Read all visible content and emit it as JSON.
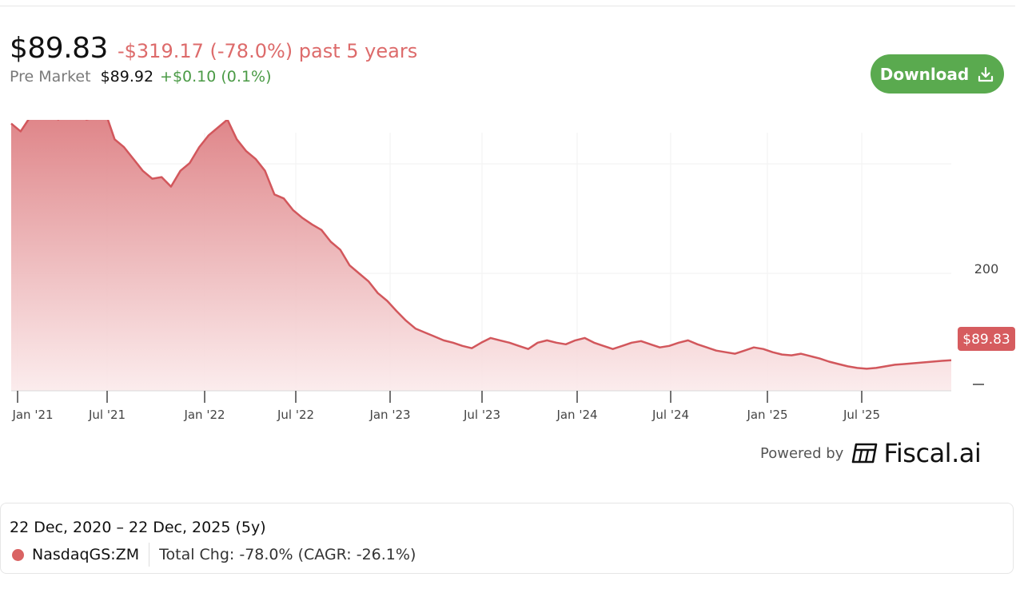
{
  "header": {
    "price": "$89.83",
    "change": "-$319.17 (-78.0%) past 5 years",
    "premarket_label": "Pre Market",
    "premarket_price": "$89.92",
    "premarket_change": "+$0.10 (0.1%)"
  },
  "toolbar": {
    "download_label": "Download"
  },
  "powered_by": {
    "label": "Powered by",
    "brand": "Fiscal.ai"
  },
  "info": {
    "range": "22 Dec, 2020 – 22 Dec, 2025 (5y)",
    "ticker": "NasdaqGS:ZM",
    "total_change": "Total Chg: -78.0% (CAGR: -26.1%)"
  },
  "colors": {
    "line": "#d2575c",
    "area_top": "#dc7a7e",
    "area_bottom": "#fbeaeb",
    "change_negative": "#dd6b6b",
    "change_positive": "#4a9a45",
    "download_button": "#5aaa4f",
    "price_tag": "#d65c5f"
  },
  "chart_data": {
    "type": "area",
    "x_labels": [
      "Jan '21",
      "Jul '21",
      "Jan '22",
      "Jul '22",
      "Jan '23",
      "Jul '23",
      "Jan '24",
      "Jul '24",
      "Jan '25",
      "Jul '25"
    ],
    "y_tick_labels": [
      "200"
    ],
    "last_price_label": "$89.83",
    "y_range": [
      51,
      415
    ],
    "grid": true,
    "series": [
      {
        "values": [
          [
            0.0,
            390
          ],
          [
            0.01,
            380
          ],
          [
            0.02,
            398
          ],
          [
            0.03,
            402
          ],
          [
            0.04,
            407
          ],
          [
            0.05,
            395
          ],
          [
            0.06,
            412
          ],
          [
            0.07,
            408
          ],
          [
            0.08,
            395
          ],
          [
            0.09,
            398
          ],
          [
            0.1,
            405
          ],
          [
            0.11,
            370
          ],
          [
            0.12,
            360
          ],
          [
            0.13,
            345
          ],
          [
            0.14,
            330
          ],
          [
            0.15,
            320
          ],
          [
            0.16,
            322
          ],
          [
            0.17,
            310
          ],
          [
            0.18,
            330
          ],
          [
            0.19,
            340
          ],
          [
            0.2,
            360
          ],
          [
            0.21,
            375
          ],
          [
            0.22,
            385
          ],
          [
            0.23,
            395
          ],
          [
            0.24,
            370
          ],
          [
            0.25,
            355
          ],
          [
            0.26,
            345
          ],
          [
            0.27,
            330
          ],
          [
            0.28,
            300
          ],
          [
            0.29,
            295
          ],
          [
            0.3,
            280
          ],
          [
            0.31,
            270
          ],
          [
            0.32,
            262
          ],
          [
            0.33,
            255
          ],
          [
            0.34,
            240
          ],
          [
            0.35,
            230
          ],
          [
            0.36,
            210
          ],
          [
            0.37,
            200
          ],
          [
            0.38,
            190
          ],
          [
            0.39,
            175
          ],
          [
            0.4,
            165
          ],
          [
            0.41,
            152
          ],
          [
            0.42,
            140
          ],
          [
            0.43,
            130
          ],
          [
            0.44,
            125
          ],
          [
            0.45,
            120
          ],
          [
            0.46,
            115
          ],
          [
            0.47,
            112
          ],
          [
            0.48,
            108
          ],
          [
            0.49,
            105
          ],
          [
            0.5,
            112
          ],
          [
            0.51,
            118
          ],
          [
            0.52,
            115
          ],
          [
            0.53,
            112
          ],
          [
            0.54,
            108
          ],
          [
            0.55,
            104
          ],
          [
            0.56,
            112
          ],
          [
            0.57,
            115
          ],
          [
            0.58,
            112
          ],
          [
            0.59,
            110
          ],
          [
            0.6,
            115
          ],
          [
            0.61,
            118
          ],
          [
            0.62,
            112
          ],
          [
            0.63,
            108
          ],
          [
            0.64,
            104
          ],
          [
            0.65,
            108
          ],
          [
            0.66,
            112
          ],
          [
            0.67,
            114
          ],
          [
            0.68,
            110
          ],
          [
            0.69,
            106
          ],
          [
            0.7,
            108
          ],
          [
            0.71,
            112
          ],
          [
            0.72,
            115
          ],
          [
            0.73,
            110
          ],
          [
            0.74,
            106
          ],
          [
            0.75,
            102
          ],
          [
            0.76,
            100
          ],
          [
            0.77,
            98
          ],
          [
            0.78,
            102
          ],
          [
            0.79,
            106
          ],
          [
            0.8,
            104
          ],
          [
            0.81,
            100
          ],
          [
            0.82,
            97
          ],
          [
            0.83,
            96
          ],
          [
            0.84,
            98
          ],
          [
            0.85,
            95
          ],
          [
            0.86,
            92
          ],
          [
            0.87,
            88
          ],
          [
            0.88,
            85
          ],
          [
            0.89,
            82
          ],
          [
            0.9,
            80
          ],
          [
            0.91,
            79
          ],
          [
            0.92,
            80
          ],
          [
            0.93,
            82
          ],
          [
            0.94,
            84
          ],
          [
            0.95,
            85
          ],
          [
            0.96,
            86
          ],
          [
            0.97,
            87
          ],
          [
            0.98,
            88
          ],
          [
            0.99,
            89
          ],
          [
            1.0,
            89.83
          ]
        ]
      }
    ]
  }
}
